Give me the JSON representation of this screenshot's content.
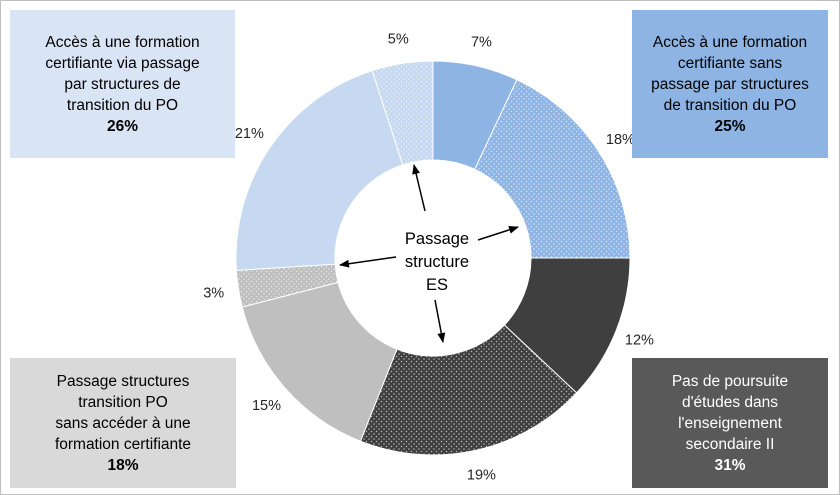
{
  "chart_data": {
    "type": "donut",
    "slices": [
      {
        "label": "7%",
        "value": 7,
        "color": "#8eb4e3",
        "pattern": "solid"
      },
      {
        "label": "18%",
        "value": 18,
        "color": "#8eb4e3",
        "pattern": "dots-light"
      },
      {
        "label": "12%",
        "value": 12,
        "color": "#3f3f3f",
        "pattern": "solid"
      },
      {
        "label": "19%",
        "value": 19,
        "color": "#3f3f3f",
        "pattern": "dots-light"
      },
      {
        "label": "15%",
        "value": 15,
        "color": "#bfbfbf",
        "pattern": "solid"
      },
      {
        "label": "3%",
        "value": 3,
        "color": "#bfbfbf",
        "pattern": "dots-light"
      },
      {
        "label": "21%",
        "value": 21,
        "color": "#c6d9f1",
        "pattern": "solid"
      },
      {
        "label": "5%",
        "value": 5,
        "color": "#c6d9f1",
        "pattern": "dots-light"
      }
    ],
    "center_label": [
      "Passage",
      "structure",
      "ES"
    ],
    "legend_boxes": {
      "top_left": {
        "lines": [
          "Accès à une formation",
          "certifiante via passage",
          "par structures de",
          "transition du PO"
        ],
        "pct": "26%",
        "color": "#d9e4f5"
      },
      "top_right": {
        "lines": [
          "Accès à une formation",
          "certifiante sans",
          "passage par structures",
          "de transition du PO"
        ],
        "pct": "25%",
        "color": "#8eb4e3"
      },
      "bottom_left": {
        "lines": [
          "Passage structures",
          "transition PO",
          "sans accéder à une",
          "formation certifiante"
        ],
        "pct": "18%",
        "color": "#d9d9d9"
      },
      "bottom_right": {
        "lines": [
          "Pas de poursuite",
          "d'études dans",
          "l'enseignement",
          "secondaire II"
        ],
        "pct": "31%",
        "color": "#595959"
      }
    }
  }
}
